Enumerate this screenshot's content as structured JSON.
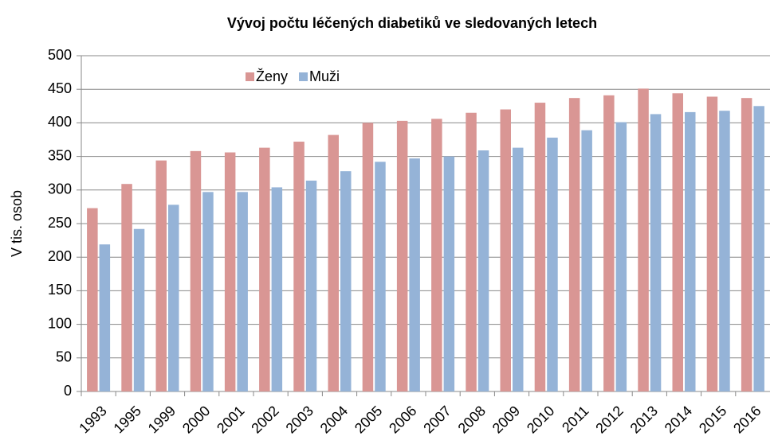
{
  "chart_data": {
    "type": "bar",
    "title": "Vývoj počtu léčených diabetiků ve sledovaných letech",
    "y_label": "V tis. osob",
    "categories": [
      "1993",
      "1995",
      "1999",
      "2000",
      "2001",
      "2002",
      "2003",
      "2004",
      "2005",
      "2006",
      "2007",
      "2008",
      "2009",
      "2010",
      "2011",
      "2012",
      "2013",
      "2014",
      "2015",
      "2016"
    ],
    "series": [
      {
        "name": "Ženy",
        "color": "#d99694",
        "values": [
          273,
          309,
          344,
          358,
          356,
          363,
          372,
          382,
          400,
          403,
          406,
          415,
          420,
          430,
          437,
          441,
          451,
          444,
          439,
          437
        ]
      },
      {
        "name": "Muži",
        "color": "#95b3d7",
        "values": [
          219,
          242,
          278,
          297,
          297,
          304,
          314,
          328,
          342,
          347,
          350,
          359,
          363,
          378,
          389,
          401,
          413,
          416,
          418,
          425
        ]
      }
    ],
    "ylim": [
      0,
      500
    ],
    "yticks": [
      0,
      50,
      100,
      150,
      200,
      250,
      300,
      350,
      400,
      450,
      500
    ],
    "grid": true,
    "legend": "top"
  }
}
